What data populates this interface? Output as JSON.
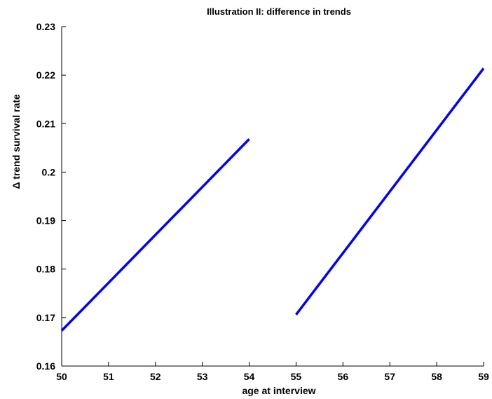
{
  "chart_data": {
    "type": "line",
    "title": "Illustration II: difference in trends",
    "xlabel": "age at interview",
    "ylabel": "Δ trend survival rate",
    "xlim": [
      50,
      59
    ],
    "ylim": [
      0.16,
      0.23
    ],
    "x_ticks": [
      50,
      51,
      52,
      53,
      54,
      55,
      56,
      57,
      58,
      59
    ],
    "x_tick_labels": [
      "50",
      "51",
      "52",
      "53",
      "54",
      "55",
      "56",
      "57",
      "58",
      "59"
    ],
    "y_ticks": [
      0.16,
      0.17,
      0.18,
      0.19,
      0.2,
      0.21,
      0.22,
      0.23
    ],
    "y_tick_labels": [
      "0.16",
      "0.17",
      "0.18",
      "0.19",
      "0.2",
      "0.21",
      "0.22",
      "0.23"
    ],
    "grid": false,
    "legend": "none",
    "line_color": "#0000ff",
    "series": [
      {
        "x": [
          50,
          54
        ],
        "y": [
          0.1673,
          0.2068
        ]
      },
      {
        "x": [
          55,
          59
        ],
        "y": [
          0.1706,
          0.2214
        ]
      }
    ]
  }
}
